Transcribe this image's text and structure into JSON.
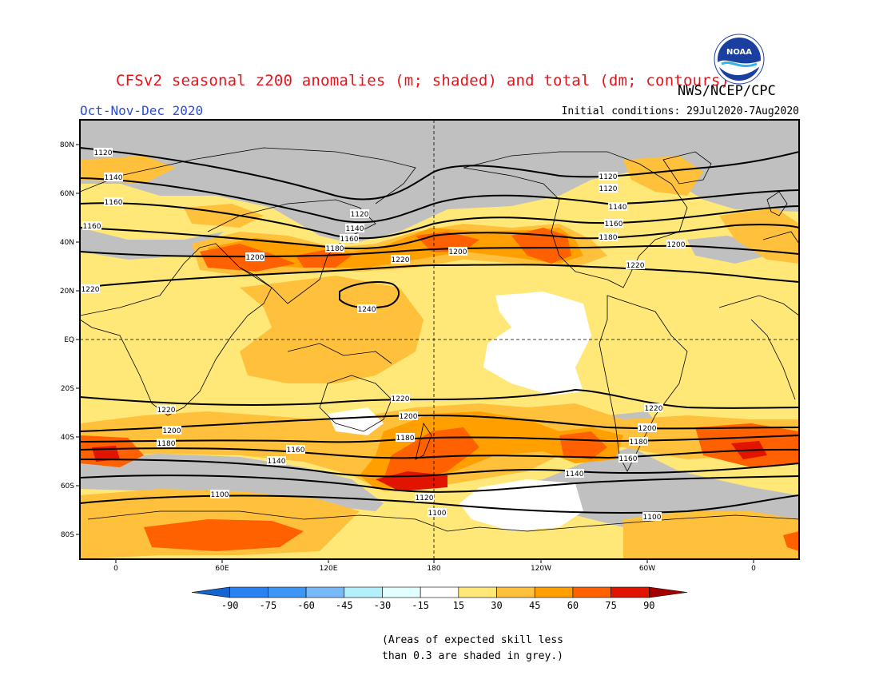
{
  "title": "CFSv2 seasonal z200 anomalies (m; shaded) and total (dm; contours)",
  "organization": "NWS/NCEP/CPC",
  "logo_text": "NOAA",
  "season": "Oct-Nov-Dec 2020",
  "initial_conditions": "Initial conditions: 29Jul2020-7Aug2020",
  "lat_labels": [
    "80N",
    "60N",
    "40N",
    "20N",
    "EQ",
    "20S",
    "40S",
    "60S",
    "80S"
  ],
  "lon_labels": [
    "0",
    "60E",
    "120E",
    "180",
    "120W",
    "60W",
    "0"
  ],
  "colorbar": {
    "labels": [
      "-90",
      "-75",
      "-60",
      "-45",
      "-30",
      "-15",
      "15",
      "30",
      "45",
      "60",
      "75",
      "90"
    ],
    "colors": [
      "#1464d2",
      "#2882f0",
      "#3c96f5",
      "#78b9fa",
      "#b4f0fa",
      "#e1ffff",
      "#ffffff",
      "#ffe878",
      "#ffc03c",
      "#ffa000",
      "#ff6000",
      "#e11400",
      "#a50000"
    ]
  },
  "note": [
    "(Areas of expected skill less",
    "than 0.3 are shaded in grey.)"
  ],
  "contours": [
    {
      "value": "1100",
      "labels": [
        {
          "lon": 45,
          "text": "1100"
        },
        {
          "lon": 180,
          "text": "1100"
        },
        {
          "lon": 298,
          "text": "1100"
        }
      ]
    },
    {
      "value": "1120",
      "labels": [
        {
          "lon": -10,
          "text": "1120"
        },
        {
          "lon": 138,
          "text": "1120"
        },
        {
          "lon": 268,
          "text": "1120"
        },
        {
          "lon": 176,
          "text": "1120"
        }
      ]
    },
    {
      "value": "1140",
      "labels": [
        {
          "lon": -2,
          "text": "1140"
        },
        {
          "lon": 133,
          "text": "1140"
        },
        {
          "lon": 262,
          "text": "1140"
        },
        {
          "lon": 90,
          "text": "1140"
        },
        {
          "lon": 255,
          "text": "1140"
        }
      ]
    },
    {
      "value": "1160",
      "labels": [
        {
          "lon": -2,
          "text": "1160"
        },
        {
          "lon": -15,
          "text": "1160"
        },
        {
          "lon": 130,
          "text": "1160"
        },
        {
          "lon": 262,
          "text": "1160"
        },
        {
          "lon": 98,
          "text": "1160"
        },
        {
          "lon": 290,
          "text": "1160"
        }
      ]
    },
    {
      "value": "1180",
      "labels": [
        {
          "lon": 120,
          "text": "1180"
        },
        {
          "lon": 262,
          "text": "1180"
        },
        {
          "lon": 30,
          "text": "1180"
        },
        {
          "lon": 160,
          "text": "1180"
        },
        {
          "lon": 290,
          "text": "1180"
        }
      ]
    },
    {
      "value": "1200",
      "labels": [
        {
          "lon": 78,
          "text": "1200"
        },
        {
          "lon": 193,
          "text": "1200"
        },
        {
          "lon": 305,
          "text": "1200"
        },
        {
          "lon": 30,
          "text": "1200"
        },
        {
          "lon": 170,
          "text": "1200"
        },
        {
          "lon": 296,
          "text": "1200"
        }
      ]
    },
    {
      "value": "1220",
      "labels": [
        {
          "lon": -15,
          "text": "1220"
        },
        {
          "lon": 160,
          "text": "1220"
        },
        {
          "lon": 284,
          "text": "1220"
        },
        {
          "lon": 30,
          "text": "1220"
        },
        {
          "lon": 170,
          "text": "1220"
        },
        {
          "lon": 300,
          "text": "1220"
        }
      ]
    },
    {
      "value": "1240",
      "labels": [
        {
          "lon": 145,
          "text": "1240"
        }
      ]
    }
  ]
}
